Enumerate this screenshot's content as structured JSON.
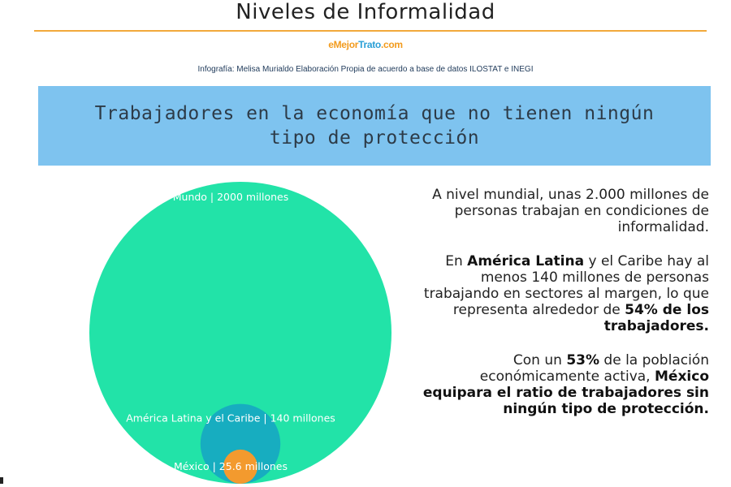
{
  "header": {
    "title": "Niveles de Informalidad",
    "brand_a": "eMejor",
    "brand_b": "Trato",
    "brand_c": ".com",
    "credit": "Infografía: Melisa Murialdo Elaboración Propia de acuerdo a base de datos ILOSTAT e INEGI"
  },
  "banner": {
    "text": "Trabajadores en la economía que no tienen ningún tipo de protección"
  },
  "chart_data": {
    "type": "bubble",
    "title": "",
    "unit": "millones",
    "series": [
      {
        "name": "Mundo",
        "label": "Mundo | 2000 millones",
        "value": 2000,
        "color": "#22e3a8"
      },
      {
        "name": "América Latina y el Caribe",
        "label": "América Latina y el Caribe | 140 millones",
        "value": 140,
        "color": "#17adc0"
      },
      {
        "name": "México",
        "label": "México | 25.6 millones",
        "value": 25.6,
        "color": "#f39a2e"
      }
    ]
  },
  "paragraphs": {
    "p1": "A nivel mundial, unas 2.000 millones de personas trabajan en condiciones de informalidad.",
    "p2_a": "En ",
    "p2_b": "América Latina",
    "p2_c": " y el Caribe hay al menos 140 millones de personas trabajando en sectores al margen, lo que representa alrededor de ",
    "p2_d": "54% de los trabajadores.",
    "p3_a": "Con un ",
    "p3_b": "53%",
    "p3_c": " de la población económicamente activa, ",
    "p3_d": "México equipara el ratio de trabajadores sin ningún tipo de protección."
  }
}
